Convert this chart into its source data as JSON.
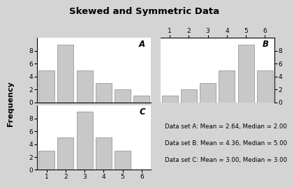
{
  "title": "Skewed and Symmetric Data",
  "bar_color": "#c8c8c8",
  "bar_edge_color": "#999999",
  "background_color": "#d4d4d4",
  "panel_bg": "#ffffff",
  "datasets": {
    "A": [
      5,
      9,
      5,
      3,
      2,
      1
    ],
    "B": [
      1,
      2,
      3,
      5,
      9,
      5
    ],
    "C": [
      3,
      5,
      9,
      5,
      3,
      0
    ]
  },
  "x_labels": [
    "1",
    "2",
    "3",
    "4",
    "5",
    "6"
  ],
  "ylabel": "Frequency",
  "annotation_lines": [
    "Data set A: Mean = 2.64, Median = 2.00",
    "Data set B: Mean = 4.36, Median = 5.00",
    "Data set C: Mean = 3.00, Median = 3.00"
  ],
  "yticks_A": [
    0,
    2,
    4,
    6,
    8
  ],
  "yticks_B": [
    0,
    2,
    4,
    6,
    8
  ],
  "yticks_C": [
    0,
    2,
    4,
    6,
    8
  ],
  "ylim": [
    0,
    10
  ],
  "xlim": [
    0.5,
    6.5
  ]
}
